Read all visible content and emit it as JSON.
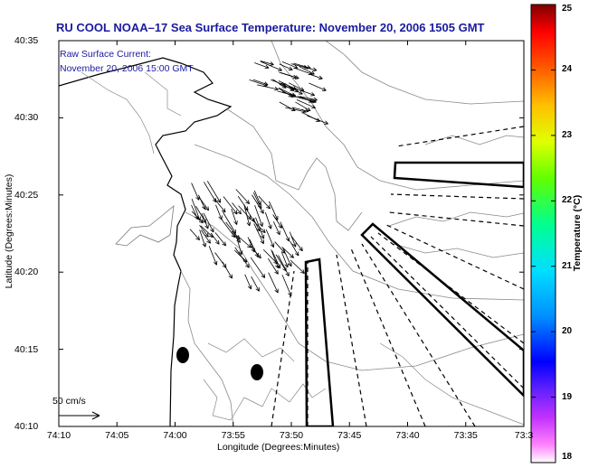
{
  "title": "RU COOL  NOAA–17  Sea Surface Temperature:  November 20, 2006 1505 GMT",
  "current_label": "Raw Surface Current:",
  "current_time": "November 20, 2006 15:00 GMT",
  "scale_label": "50 cm/s",
  "xlabel": "Longitude (Degrees:Minutes)",
  "ylabel": "Latitude (Degrees:Minutes)",
  "x_ticks": [
    "74:10",
    "74:05",
    "74:00",
    "73:55",
    "73:50",
    "73:45",
    "73:40",
    "73:35",
    "73:3"
  ],
  "y_ticks": [
    "40:35",
    "40:30",
    "40:25",
    "40:20",
    "40:15",
    "40:10"
  ],
  "colorbar": {
    "label": "Temperature (°C)",
    "ticks": [
      "25",
      "24",
      "23",
      "22",
      "21",
      "20",
      "19",
      "18"
    ],
    "min": 18,
    "max": 25
  },
  "colors": {
    "title": "#1a1aa0",
    "land_and_contours": "#777777",
    "vectors": "#000000"
  }
}
